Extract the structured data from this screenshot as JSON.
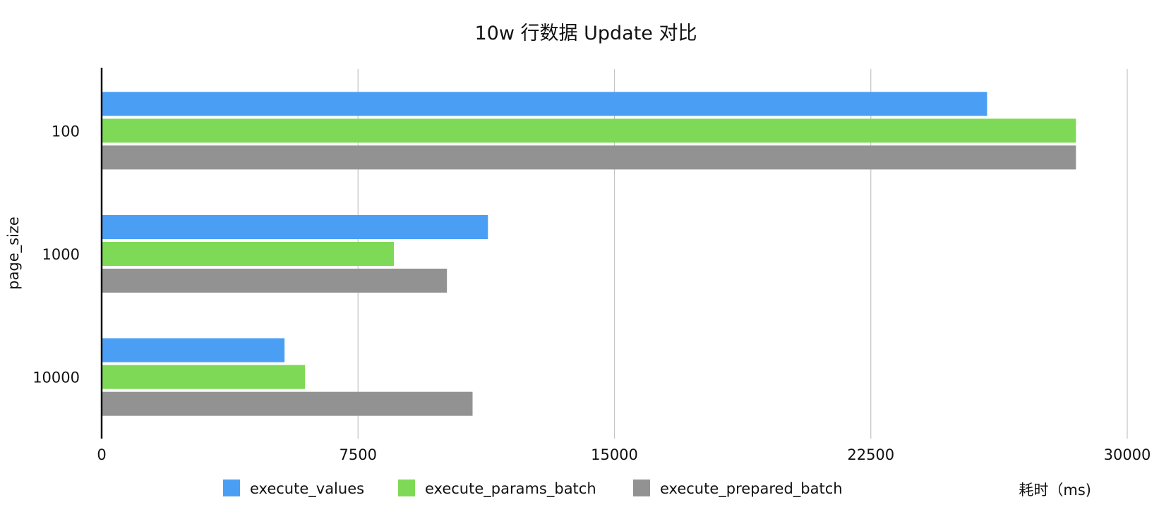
{
  "chart_data": {
    "type": "bar",
    "orientation": "horizontal",
    "title": "10w 行数据 Update 对比",
    "xlabel": "耗时（ms)",
    "ylabel": "page_size",
    "categories": [
      "100",
      "1000",
      "10000"
    ],
    "xlim": [
      0,
      30000
    ],
    "xticks": [
      "0",
      "7500",
      "15000",
      "22500",
      "30000"
    ],
    "grid": true,
    "legend_position": "bottom",
    "series": [
      {
        "name": "execute_values",
        "color": "#4a9ff5",
        "values": [
          25900,
          11300,
          5350
        ]
      },
      {
        "name": "execute_params_batch",
        "color": "#7ed957",
        "values": [
          28500,
          8550,
          5950
        ]
      },
      {
        "name": "execute_prepared_batch",
        "color": "#929292",
        "values": [
          28500,
          10100,
          10850
        ]
      }
    ]
  }
}
